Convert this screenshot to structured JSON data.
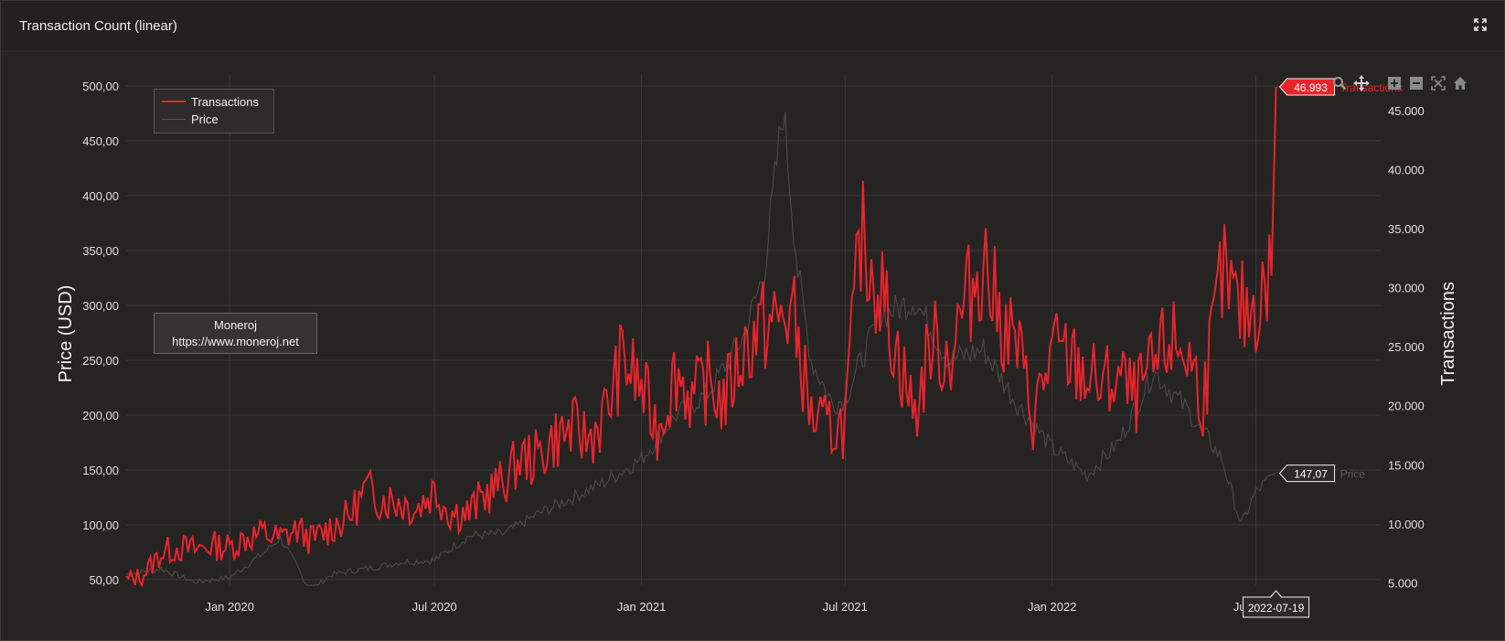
{
  "header": {
    "title": "Transaction Count (linear)"
  },
  "icons": {
    "expand": "expand-icon",
    "modebar": [
      "zoom-icon",
      "pan-icon",
      "zoom-in-icon",
      "zoom-out-icon",
      "autoscale-icon",
      "reset-home-icon"
    ]
  },
  "legend": {
    "items": [
      {
        "label": "Transactions",
        "color": "#e8242b"
      },
      {
        "label": "Price",
        "color": "#555555"
      }
    ]
  },
  "watermark": {
    "line1": "Moneroj",
    "line2": "https://www.moneroj.net"
  },
  "colors": {
    "transactions": "#e8242b",
    "price": "#4a4747",
    "grid": "#3a3838",
    "background": "#262323"
  },
  "chart_data": {
    "type": "line",
    "x_start": "2019-10-01",
    "x_end": "2022-10-20",
    "x_ticks": [
      {
        "date": "2020-01-01",
        "label": "Jan 2020"
      },
      {
        "date": "2020-07-01",
        "label": "Jul 2020"
      },
      {
        "date": "2021-01-01",
        "label": "Jan 2021"
      },
      {
        "date": "2021-07-01",
        "label": "Jul 2021"
      },
      {
        "date": "2022-01-01",
        "label": "Jan 2022"
      },
      {
        "date": "2022-07-01",
        "label": "Jul 2022"
      }
    ],
    "y_left": {
      "label": "Price (USD)",
      "range": [
        45,
        510
      ],
      "ticks": [
        50,
        100,
        150,
        200,
        250,
        300,
        350,
        400,
        450,
        500
      ],
      "tick_labels": [
        "50,00",
        "100,00",
        "150,00",
        "200,00",
        "250,00",
        "300,00",
        "350,00",
        "400,00",
        "450,00",
        "500,00"
      ]
    },
    "y_right": {
      "label": "Transactions",
      "range": [
        4800,
        48000
      ],
      "ticks": [
        5000,
        10000,
        15000,
        20000,
        25000,
        30000,
        35000,
        40000,
        45000
      ],
      "tick_labels": [
        "5.000",
        "10.000",
        "15.000",
        "20.000",
        "25.000",
        "30.000",
        "35.000",
        "40.000",
        "45.000"
      ]
    },
    "series": [
      {
        "name": "Transactions",
        "axis": "right",
        "points": [
          [
            "2019-10-01",
            5200
          ],
          [
            "2019-10-15",
            5600
          ],
          [
            "2019-11-01",
            7500
          ],
          [
            "2019-11-15",
            8000
          ],
          [
            "2019-12-01",
            7800
          ],
          [
            "2019-12-15",
            8200
          ],
          [
            "2020-01-01",
            8000
          ],
          [
            "2020-01-15",
            8800
          ],
          [
            "2020-02-01",
            9200
          ],
          [
            "2020-02-15",
            8700
          ],
          [
            "2020-03-01",
            9500
          ],
          [
            "2020-03-15",
            8600
          ],
          [
            "2020-04-01",
            9800
          ],
          [
            "2020-04-15",
            10500
          ],
          [
            "2020-05-01",
            12800
          ],
          [
            "2020-05-15",
            12200
          ],
          [
            "2020-06-01",
            11900
          ],
          [
            "2020-06-15",
            11300
          ],
          [
            "2020-07-01",
            12900
          ],
          [
            "2020-07-15",
            11000
          ],
          [
            "2020-08-01",
            10900
          ],
          [
            "2020-08-15",
            12500
          ],
          [
            "2020-09-01",
            13600
          ],
          [
            "2020-09-15",
            15500
          ],
          [
            "2020-10-01",
            15600
          ],
          [
            "2020-10-15",
            17200
          ],
          [
            "2020-11-01",
            18000
          ],
          [
            "2020-11-15",
            17200
          ],
          [
            "2020-12-01",
            19500
          ],
          [
            "2020-12-15",
            24000
          ],
          [
            "2021-01-01",
            21500
          ],
          [
            "2021-01-15",
            18000
          ],
          [
            "2021-02-01",
            23000
          ],
          [
            "2021-02-15",
            20500
          ],
          [
            "2021-03-01",
            22000
          ],
          [
            "2021-03-15",
            20300
          ],
          [
            "2021-04-01",
            24500
          ],
          [
            "2021-04-15",
            26500
          ],
          [
            "2021-05-01",
            27000
          ],
          [
            "2021-05-15",
            28000
          ],
          [
            "2021-06-01",
            19000
          ],
          [
            "2021-06-15",
            18000
          ],
          [
            "2021-07-01",
            18500
          ],
          [
            "2021-07-15",
            34500
          ],
          [
            "2021-08-01",
            30000
          ],
          [
            "2021-08-15",
            25000
          ],
          [
            "2021-09-01",
            19000
          ],
          [
            "2021-09-15",
            25500
          ],
          [
            "2021-10-01",
            24000
          ],
          [
            "2021-10-15",
            28500
          ],
          [
            "2021-11-01",
            32500
          ],
          [
            "2021-11-15",
            27500
          ],
          [
            "2021-12-01",
            25000
          ],
          [
            "2021-12-15",
            19000
          ],
          [
            "2022-01-01",
            24500
          ],
          [
            "2022-01-15",
            24000
          ],
          [
            "2022-02-01",
            22500
          ],
          [
            "2022-02-15",
            21500
          ],
          [
            "2022-03-01",
            22500
          ],
          [
            "2022-03-15",
            20500
          ],
          [
            "2022-04-01",
            23000
          ],
          [
            "2022-04-15",
            25500
          ],
          [
            "2022-05-01",
            24500
          ],
          [
            "2022-05-15",
            20500
          ],
          [
            "2022-06-01",
            31000
          ],
          [
            "2022-06-15",
            28000
          ],
          [
            "2022-06-25",
            28000
          ],
          [
            "2022-07-05",
            29000
          ],
          [
            "2022-07-15",
            31000
          ],
          [
            "2022-07-19",
            46993
          ]
        ]
      },
      {
        "name": "Price",
        "axis": "left",
        "points": [
          [
            "2019-10-01",
            55
          ],
          [
            "2019-11-01",
            60
          ],
          [
            "2019-12-01",
            48
          ],
          [
            "2020-01-01",
            52
          ],
          [
            "2020-02-01",
            75
          ],
          [
            "2020-02-15",
            88
          ],
          [
            "2020-03-01",
            62
          ],
          [
            "2020-03-12",
            40
          ],
          [
            "2020-04-01",
            55
          ],
          [
            "2020-05-01",
            60
          ],
          [
            "2020-06-01",
            66
          ],
          [
            "2020-07-01",
            68
          ],
          [
            "2020-08-01",
            90
          ],
          [
            "2020-09-01",
            92
          ],
          [
            "2020-10-01",
            110
          ],
          [
            "2020-11-01",
            125
          ],
          [
            "2020-12-01",
            140
          ],
          [
            "2021-01-01",
            160
          ],
          [
            "2021-02-01",
            200
          ],
          [
            "2021-03-01",
            220
          ],
          [
            "2021-04-01",
            270
          ],
          [
            "2021-04-20",
            330
          ],
          [
            "2021-05-07",
            480
          ],
          [
            "2021-05-20",
            330
          ],
          [
            "2021-06-01",
            250
          ],
          [
            "2021-06-20",
            210
          ],
          [
            "2021-07-01",
            215
          ],
          [
            "2021-08-01",
            290
          ],
          [
            "2021-09-01",
            305
          ],
          [
            "2021-10-01",
            250
          ],
          [
            "2021-11-01",
            260
          ],
          [
            "2021-12-01",
            210
          ],
          [
            "2022-01-01",
            170
          ],
          [
            "2022-02-01",
            145
          ],
          [
            "2022-03-01",
            175
          ],
          [
            "2022-04-01",
            240
          ],
          [
            "2022-05-01",
            205
          ],
          [
            "2022-06-01",
            160
          ],
          [
            "2022-06-18",
            100
          ],
          [
            "2022-07-01",
            130
          ],
          [
            "2022-07-19",
            147
          ]
        ]
      }
    ],
    "annotations": [
      {
        "series": "Transactions",
        "value_label": "46.993",
        "name_label": "Transactions"
      },
      {
        "series": "Price",
        "value_label": "147,07",
        "name_label": "Price"
      },
      {
        "series": "x",
        "value_label": "2022-07-19"
      }
    ],
    "legend_position": "top-left",
    "grid": true
  }
}
